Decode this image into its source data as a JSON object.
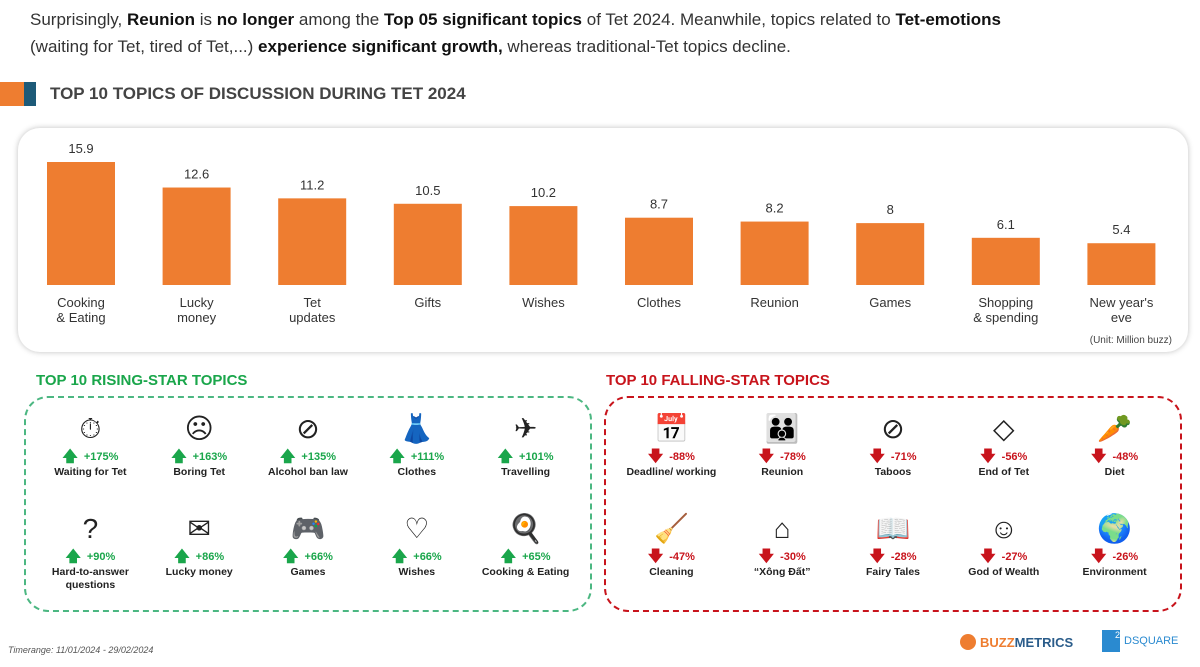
{
  "intro": {
    "p1": "Surprisingly, ",
    "b1": "Reunion",
    "p2": " is ",
    "b2": "no longer",
    "p3": " among the ",
    "b3": "Top 05 significant topics",
    "p4": " of Tet 2024. Meanwhile, topics related to ",
    "b4": "Tet-emotions",
    "p5": " (waiting for Tet, tired of Tet,...) ",
    "b5": "experience significant growth,",
    "p6": " whereas traditional-Tet topics decline."
  },
  "colors": {
    "bar": "#ee7d30",
    "rising": "#1aa64b",
    "falling": "#c8141c",
    "title_accent_orange": "#ee7d30",
    "title_accent_blue": "#1d5a78"
  },
  "chart_data": {
    "type": "bar",
    "title": "TOP 10 TOPICS OF DISCUSSION DURING TET 2024",
    "categories": [
      "Cooking\n& Eating",
      "Lucky\nmoney",
      "Tet\nupdates",
      "Gifts",
      "Wishes",
      "Clothes",
      "Reunion",
      "Games",
      "Shopping\n& spending",
      "New year's\neve"
    ],
    "values": [
      15.9,
      12.6,
      11.2,
      10.5,
      10.2,
      8.7,
      8.2,
      8,
      6.1,
      5.4
    ],
    "value_labels": [
      "15.9",
      "12.6",
      "11.2",
      "10.5",
      "10.2",
      "8.7",
      "8.2",
      "8",
      "6.1",
      "5.4"
    ],
    "unit": "(Unit: Million buzz)",
    "ylim": [
      0,
      16
    ],
    "grid": false,
    "legend": "none"
  },
  "rising": {
    "title": "TOP 10 RISING-STAR TOPICS",
    "items": [
      {
        "icon": "clock-icon",
        "glyph": "⏱",
        "pct": "+175%",
        "label": "Waiting for Tet"
      },
      {
        "icon": "confused-face-icon",
        "glyph": "☹",
        "pct": "+163%",
        "label": "Boring Tet"
      },
      {
        "icon": "no-alcohol-icon",
        "glyph": "⊘",
        "pct": "+135%",
        "label": "Alcohol ban law"
      },
      {
        "icon": "clothes-rack-icon",
        "glyph": "👗",
        "pct": "+111%",
        "label": "Clothes"
      },
      {
        "icon": "luggage-plane-icon",
        "glyph": "✈",
        "pct": "+101%",
        "label": "Travelling"
      },
      {
        "icon": "question-bubble-icon",
        "glyph": "?",
        "pct": "+90%",
        "label": "Hard-to-answer questions"
      },
      {
        "icon": "red-envelope-icon",
        "glyph": "✉",
        "pct": "+86%",
        "label": "Lucky money"
      },
      {
        "icon": "gamepad-icon",
        "glyph": "🎮",
        "pct": "+66%",
        "label": "Games"
      },
      {
        "icon": "heart-bubble-icon",
        "glyph": "♡",
        "pct": "+66%",
        "label": "Wishes"
      },
      {
        "icon": "wok-icon",
        "glyph": "🍳",
        "pct": "+65%",
        "label": "Cooking & Eating"
      }
    ]
  },
  "falling": {
    "title": "TOP 10 FALLING-STAR TOPICS",
    "items": [
      {
        "icon": "calendar-clock-icon",
        "glyph": "📅",
        "pct": "-88%",
        "label": "Deadline/ working"
      },
      {
        "icon": "family-icon",
        "glyph": "👪",
        "pct": "-78%",
        "label": "Reunion"
      },
      {
        "icon": "prohibited-icon",
        "glyph": "⊘",
        "pct": "-71%",
        "label": "Taboos"
      },
      {
        "icon": "end-sign-icon",
        "glyph": "◇",
        "pct": "-56%",
        "label": "End of Tet"
      },
      {
        "icon": "groceries-icon",
        "glyph": "🥕",
        "pct": "-48%",
        "label": "Diet"
      },
      {
        "icon": "broom-bucket-icon",
        "glyph": "🧹",
        "pct": "-47%",
        "label": "Cleaning"
      },
      {
        "icon": "house-icon",
        "glyph": "⌂",
        "pct": "-30%",
        "label": "“Xông Đất”"
      },
      {
        "icon": "open-book-icon",
        "glyph": "📖",
        "pct": "-28%",
        "label": "Fairy Tales"
      },
      {
        "icon": "god-of-wealth-icon",
        "glyph": "☺",
        "pct": "-27%",
        "label": "God of Wealth"
      },
      {
        "icon": "earth-leaf-icon",
        "glyph": "🌍",
        "pct": "-26%",
        "label": "Environment"
      }
    ]
  },
  "footer": {
    "timerange": "Timerange: 11/01/2024 - 29/02/2024",
    "logo1_a": "BUZZ",
    "logo1_b": "METRICS",
    "logo2": "DSQUARE"
  }
}
